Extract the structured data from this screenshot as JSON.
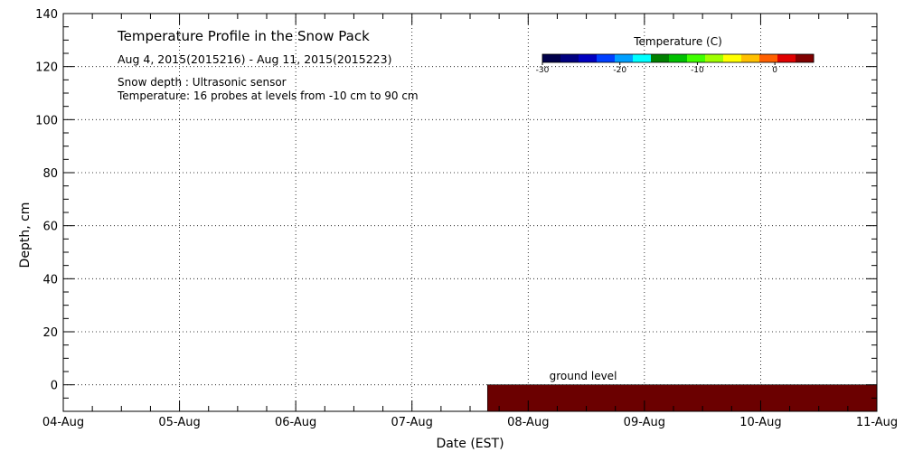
{
  "chart_data": {
    "type": "heatmap",
    "title": "Temperature Profile in the Snow Pack",
    "subtitle": "Aug  4, 2015(2015216) - Aug 11, 2015(2015223)",
    "notes": [
      "Snow depth : Ultrasonic sensor",
      "Temperature: 16 probes at levels from -10 cm to 90 cm"
    ],
    "xlabel": "Date (EST)",
    "ylabel": "Depth, cm",
    "x_tick_labels": [
      "04-Aug",
      "05-Aug",
      "06-Aug",
      "07-Aug",
      "08-Aug",
      "09-Aug",
      "10-Aug",
      "11-Aug"
    ],
    "x_range_days": [
      0,
      7
    ],
    "y_ticks": [
      0,
      20,
      40,
      60,
      80,
      100,
      120,
      140
    ],
    "ylim": [
      -10,
      140
    ],
    "grid": true,
    "colorbar": {
      "title": "Temperature (C)",
      "tick_labels": [
        "-30",
        "-20",
        "-10",
        "0"
      ],
      "tick_values": [
        -30,
        -20,
        -10,
        0
      ],
      "range": [
        -30,
        5
      ],
      "colors": [
        "#00004a",
        "#000080",
        "#0000c0",
        "#0040ff",
        "#00a0ff",
        "#00ffff",
        "#008000",
        "#00c000",
        "#40ff00",
        "#a0ff00",
        "#ffff00",
        "#ffc000",
        "#ff6000",
        "#e00000",
        "#800000"
      ]
    },
    "ground_band": {
      "label": "ground level",
      "x_start_days": 3.65,
      "x_end_days": 7,
      "y_range": [
        -10,
        0
      ],
      "color": "#6b0000"
    }
  }
}
